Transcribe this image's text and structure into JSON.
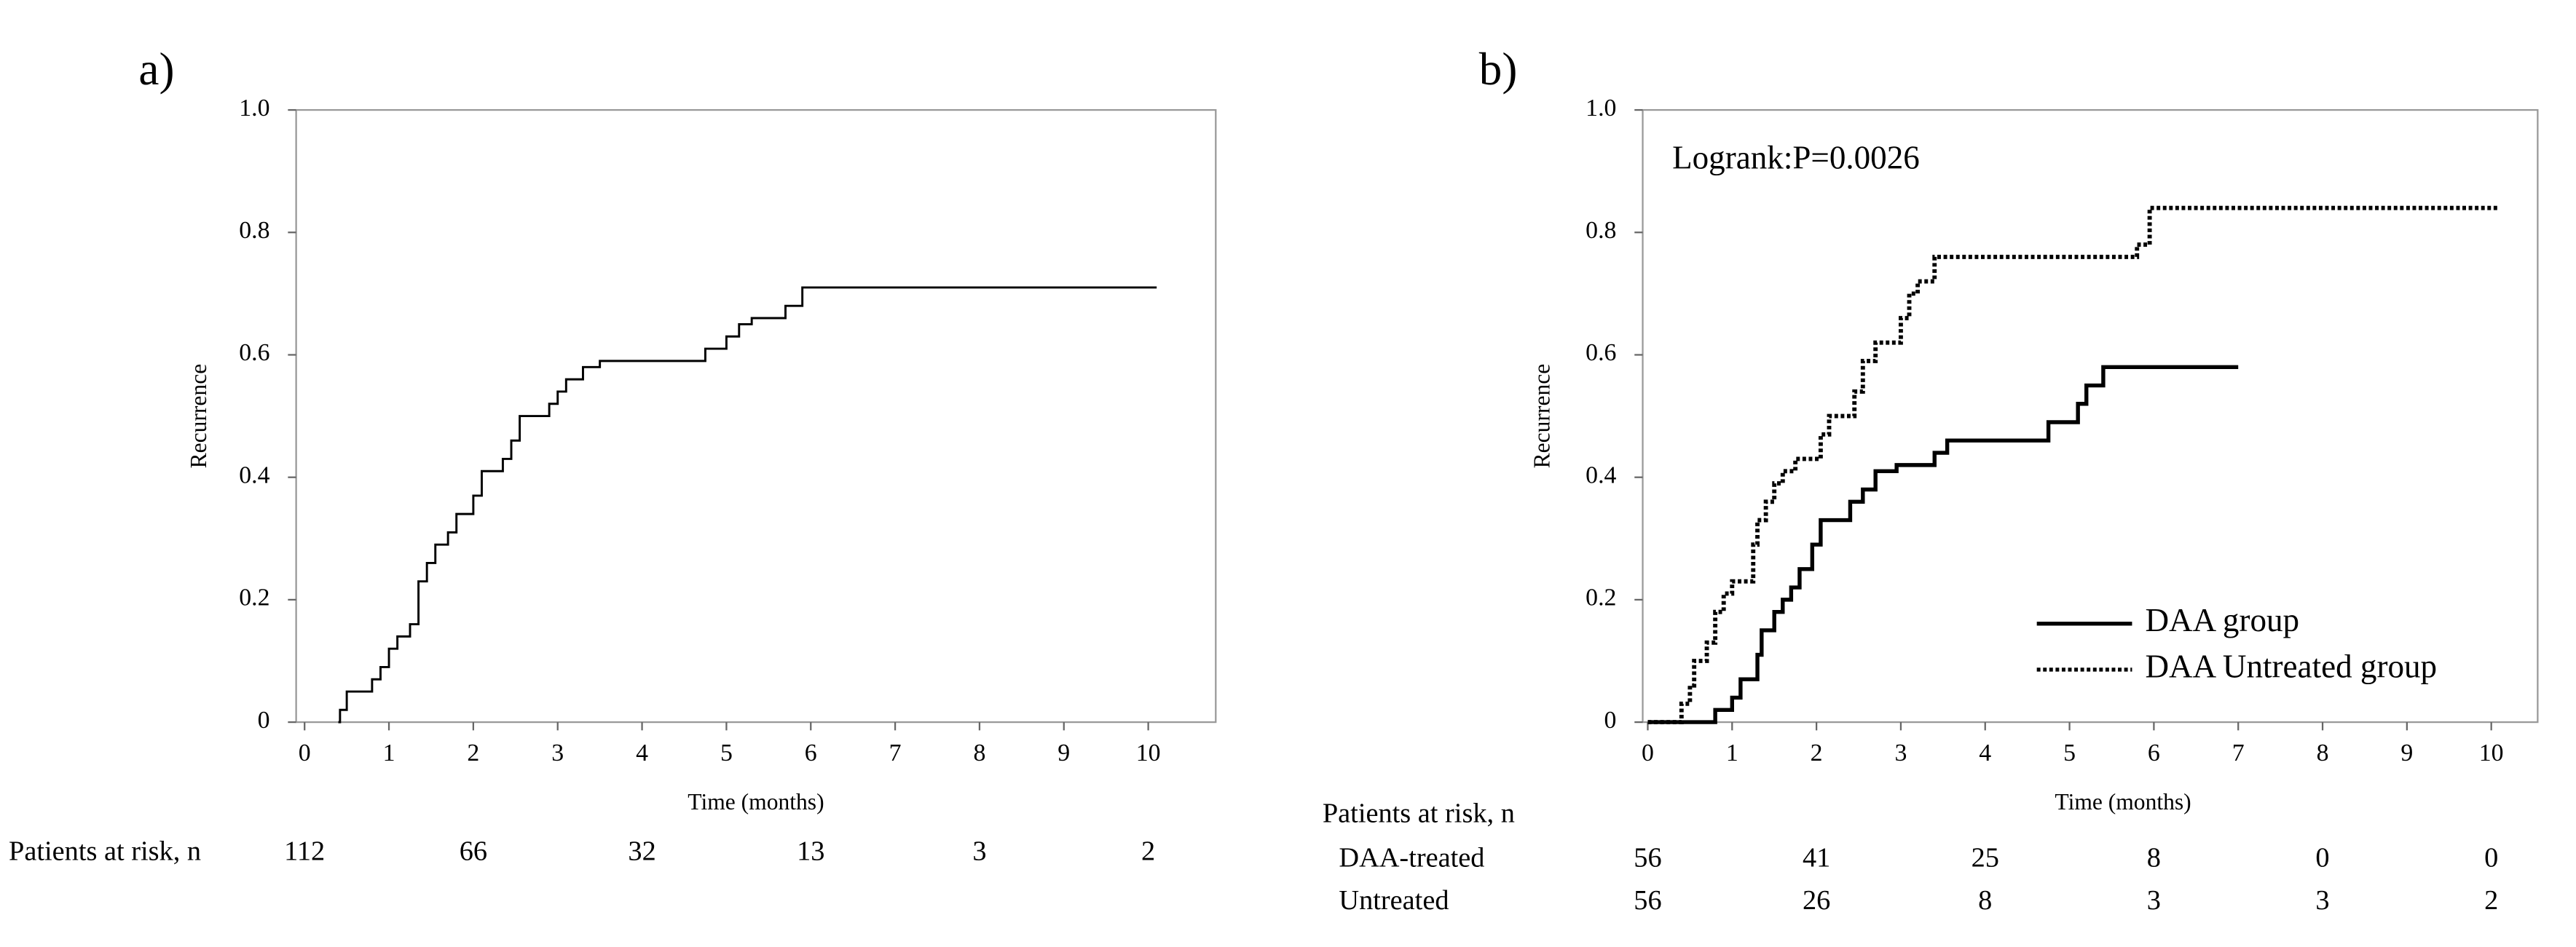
{
  "chart_data": [
    {
      "type": "step",
      "panel_label": "a)",
      "xlabel": "Time (months)",
      "ylabel": "Recurrence",
      "xlim": [
        -0.1,
        10.8
      ],
      "ylim": [
        0,
        1
      ],
      "xticks": [
        0,
        1,
        2,
        3,
        4,
        5,
        6,
        7,
        8,
        9,
        10
      ],
      "yticks": [
        0,
        0.2,
        0.4,
        0.6,
        0.8,
        {
          "value": 1,
          "label": "1.0"
        }
      ],
      "series": [
        {
          "color": "#000000",
          "linestyle": "solid",
          "x": [
            0.4,
            0.42,
            0.5,
            0.8,
            0.9,
            1.0,
            1.1,
            1.25,
            1.35,
            1.45,
            1.55,
            1.7,
            1.8,
            2.0,
            2.1,
            2.35,
            2.45,
            2.55,
            2.9,
            3.0,
            3.1,
            3.3,
            3.5,
            4.75,
            5.0,
            5.15,
            5.3,
            5.7,
            5.9,
            10.1
          ],
          "values": [
            0,
            0.02,
            0.05,
            0.07,
            0.09,
            0.12,
            0.14,
            0.16,
            0.23,
            0.26,
            0.29,
            0.31,
            0.34,
            0.37,
            0.41,
            0.43,
            0.46,
            0.5,
            0.52,
            0.54,
            0.56,
            0.58,
            0.59,
            0.61,
            0.63,
            0.65,
            0.66,
            0.68,
            0.71,
            0.71
          ]
        }
      ],
      "at_risk": {
        "label": "Patients at risk, n",
        "times": [
          0,
          2,
          4,
          6,
          8,
          10
        ],
        "rows": [
          {
            "values": [
              112,
              66,
              32,
              13,
              3,
              2
            ]
          }
        ]
      }
    },
    {
      "type": "step",
      "panel_label": "b)",
      "xlabel": "Time (months)",
      "ylabel": "Recurrence",
      "annotation": "Logrank:P=0.0026",
      "legend": "lower right",
      "xlim": [
        -0.06,
        10.55
      ],
      "ylim": [
        0,
        1
      ],
      "xticks": [
        0,
        1,
        2,
        3,
        4,
        5,
        6,
        7,
        8,
        9,
        10
      ],
      "yticks": [
        0,
        0.2,
        0.4,
        0.6,
        0.8,
        {
          "value": 1,
          "label": "1.0"
        }
      ],
      "series": [
        {
          "name": "DAA group",
          "color": "#000000",
          "linestyle": "solid",
          "x": [
            0,
            0.8,
            1.0,
            1.1,
            1.3,
            1.35,
            1.5,
            1.6,
            1.7,
            1.8,
            1.95,
            2.05,
            2.4,
            2.55,
            2.7,
            2.95,
            3.4,
            3.55,
            4.75,
            5.1,
            5.2,
            5.4,
            7.0
          ],
          "values": [
            0,
            0.02,
            0.04,
            0.07,
            0.11,
            0.15,
            0.18,
            0.2,
            0.22,
            0.25,
            0.29,
            0.33,
            0.36,
            0.38,
            0.41,
            0.42,
            0.44,
            0.46,
            0.49,
            0.52,
            0.55,
            0.58,
            0.58
          ]
        },
        {
          "name": "DAA Untreated group",
          "color": "#000000",
          "linestyle": "dotted",
          "x": [
            0,
            0.4,
            0.5,
            0.55,
            0.7,
            0.8,
            0.9,
            1.0,
            1.25,
            1.3,
            1.4,
            1.5,
            1.6,
            1.75,
            2.05,
            2.15,
            2.45,
            2.55,
            2.7,
            3.0,
            3.1,
            3.2,
            3.4,
            5.8,
            5.95,
            10.1
          ],
          "values": [
            0,
            0.03,
            0.06,
            0.1,
            0.13,
            0.18,
            0.21,
            0.23,
            0.29,
            0.33,
            0.36,
            0.39,
            0.41,
            0.43,
            0.47,
            0.5,
            0.54,
            0.59,
            0.62,
            0.66,
            0.7,
            0.72,
            0.76,
            0.78,
            0.84,
            0.84
          ]
        }
      ],
      "at_risk": {
        "label": "Patients at risk, n",
        "times": [
          0,
          2,
          4,
          6,
          8,
          10
        ],
        "rows": [
          {
            "name": "DAA-treated",
            "values": [
              56,
              41,
              25,
              8,
              0,
              0
            ]
          },
          {
            "name": "Untreated",
            "values": [
              56,
              26,
              8,
              3,
              3,
              2
            ]
          }
        ]
      }
    }
  ]
}
